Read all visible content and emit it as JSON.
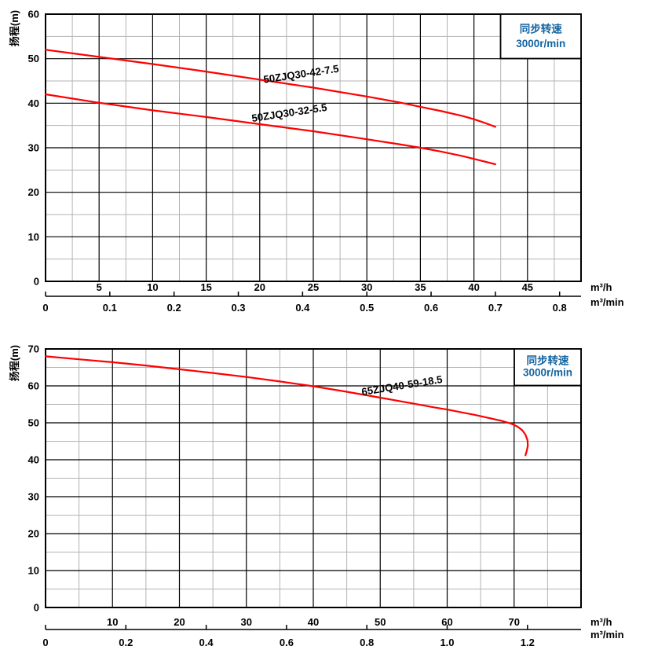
{
  "colors": {
    "curve": "#fe0000",
    "speed_text": "#1464a0",
    "grid_major": "#000000",
    "grid_minor": "#b3b3b3",
    "axis": "#000000",
    "text": "#000000",
    "box_bg": "#ffffff",
    "box_border": "#000000"
  },
  "chart_data": [
    {
      "type": "line",
      "y_axis_label": "扬程(m)",
      "x_unit_primary": "m³/h",
      "x_unit_secondary": "m³/min",
      "speed_box": {
        "line1": "同步转速",
        "line2": "3000r/min"
      },
      "x_range": [
        0,
        50
      ],
      "x_major": 5,
      "x_minor": 2.5,
      "y_range": [
        0,
        60
      ],
      "y_major": 10,
      "y_minor": 5,
      "x_tick_labels": [
        5,
        10,
        15,
        20,
        25,
        30,
        35,
        40,
        45
      ],
      "y_tick_labels": [
        0,
        10,
        20,
        30,
        40,
        50,
        60
      ],
      "x2_tick_values": [
        0,
        0.1,
        0.2,
        0.3,
        0.4,
        0.5,
        0.6,
        0.7,
        0.8
      ],
      "x2_tick_labels": [
        "0",
        "0.1",
        "0.2",
        "0.3",
        "0.4",
        "0.5",
        "0.6",
        "0.7",
        "0.8"
      ],
      "x2_per_primary": 0.016666667,
      "grid": true,
      "series": [
        {
          "name": "50ZJQ30-42-7.5",
          "points": [
            [
              0,
              52
            ],
            [
              5,
              50.4
            ],
            [
              10,
              48.8
            ],
            [
              15,
              47.1
            ],
            [
              20,
              45.3
            ],
            [
              25,
              43.5
            ],
            [
              30,
              41.5
            ],
            [
              33,
              40.2
            ],
            [
              35,
              39.2
            ],
            [
              37,
              38.2
            ],
            [
              39,
              37.1
            ],
            [
              40,
              36.4
            ],
            [
              41,
              35.6
            ],
            [
              42,
              34.7
            ]
          ],
          "label_anchor": [
            20.4,
            44.5
          ],
          "label_angle": -8.5
        },
        {
          "name": "50ZJQ30-32-5.5",
          "points": [
            [
              0,
              42
            ],
            [
              5,
              40.1
            ],
            [
              10,
              38.4
            ],
            [
              15,
              36.9
            ],
            [
              20,
              35.3
            ],
            [
              25,
              33.7
            ],
            [
              30,
              31.9
            ],
            [
              33,
              30.8
            ],
            [
              35,
              30
            ],
            [
              37,
              29.1
            ],
            [
              39,
              28.1
            ],
            [
              40,
              27.5
            ],
            [
              41,
              26.9
            ],
            [
              42,
              26.3
            ]
          ],
          "label_anchor": [
            19.3,
            35.8
          ],
          "label_angle": -8.5
        }
      ]
    },
    {
      "type": "line",
      "y_axis_label": "扬程(m)",
      "x_unit_primary": "m³/h",
      "x_unit_secondary": "m³/min",
      "speed_box": {
        "line1": "同步转速",
        "line2": "3000r/min"
      },
      "x_range": [
        0,
        80
      ],
      "x_major": 10,
      "x_minor": 5,
      "y_range": [
        0,
        70
      ],
      "y_major": 10,
      "y_minor": 5,
      "x_tick_labels": [
        10,
        20,
        30,
        40,
        50,
        60,
        70
      ],
      "y_tick_labels": [
        0,
        10,
        20,
        30,
        40,
        50,
        60,
        70
      ],
      "x2_tick_values": [
        0,
        0.2,
        0.4,
        0.6,
        0.8,
        1.0,
        1.2
      ],
      "x2_tick_labels": [
        "0",
        "0.2",
        "0.4",
        "0.6",
        "0.8",
        "1.0",
        "1.2"
      ],
      "x2_per_primary": 0.016666667,
      "grid": true,
      "series": [
        {
          "name": "65ZJQ40-59-18.5",
          "points": [
            [
              0,
              68
            ],
            [
              5,
              67.2
            ],
            [
              10,
              66.4
            ],
            [
              15,
              65.5
            ],
            [
              20,
              64.5
            ],
            [
              25,
              63.5
            ],
            [
              30,
              62.4
            ],
            [
              35,
              61.2
            ],
            [
              40,
              59.9
            ],
            [
              45,
              58.4
            ],
            [
              50,
              56.8
            ],
            [
              55,
              55.2
            ],
            [
              58,
              54.2
            ],
            [
              60,
              53.6
            ],
            [
              62,
              52.9
            ],
            [
              64,
              52.2
            ],
            [
              66,
              51.4
            ],
            [
              68,
              50.6
            ],
            [
              69.5,
              49.8
            ],
            [
              70.5,
              49
            ],
            [
              71.2,
              48
            ],
            [
              71.7,
              46.8
            ],
            [
              72,
              45.3
            ],
            [
              72.05,
              43.8
            ],
            [
              71.9,
              42.4
            ],
            [
              71.7,
              41.2
            ]
          ],
          "label_anchor": [
            47.3,
            57.4
          ],
          "label_angle": -9
        }
      ]
    }
  ]
}
